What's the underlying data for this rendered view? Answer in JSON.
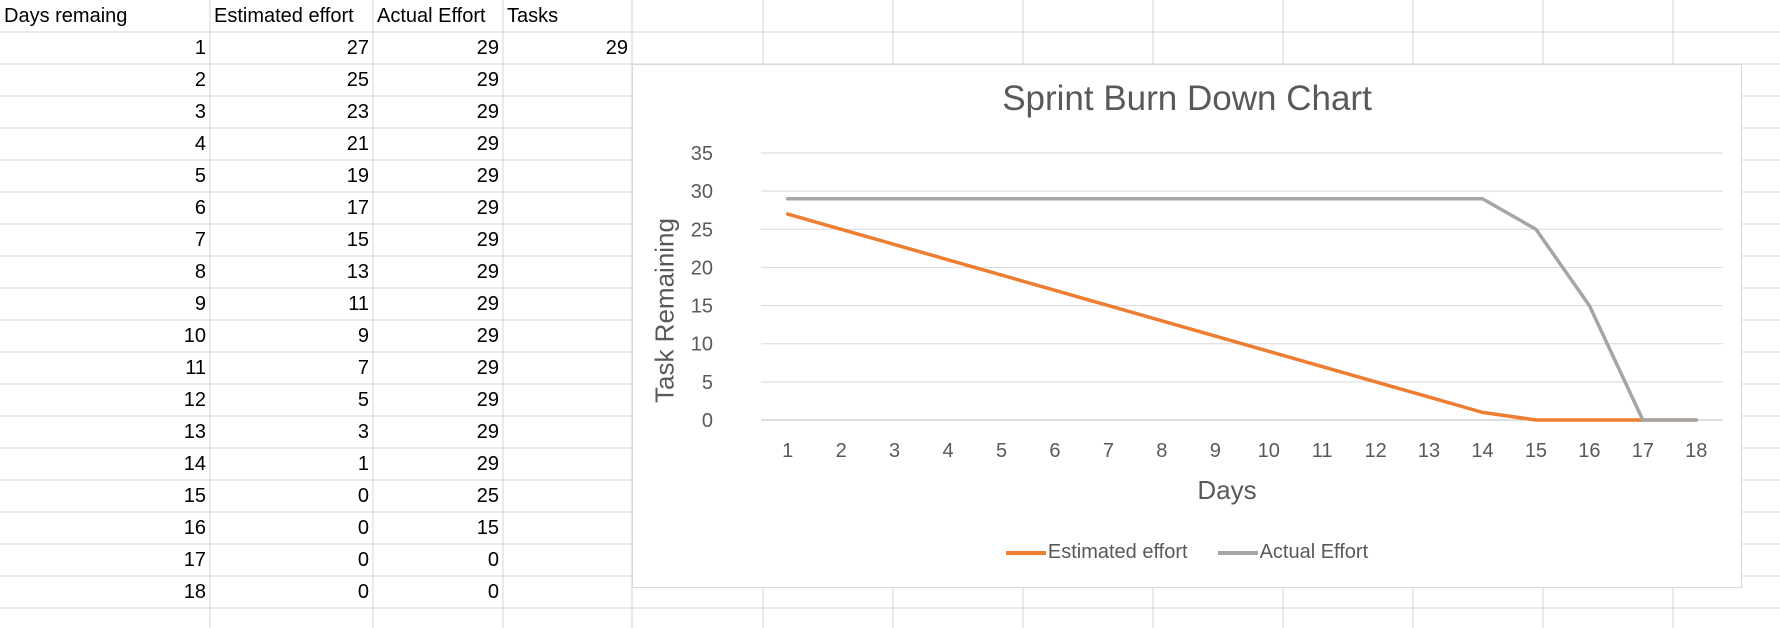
{
  "sheet": {
    "headers": [
      "Days remaing",
      "Estimated effort",
      "Actual Effort",
      "Tasks"
    ],
    "tasks_value": "29",
    "rows": [
      [
        "1",
        "27",
        "29"
      ],
      [
        "2",
        "25",
        "29"
      ],
      [
        "3",
        "23",
        "29"
      ],
      [
        "4",
        "21",
        "29"
      ],
      [
        "5",
        "19",
        "29"
      ],
      [
        "6",
        "17",
        "29"
      ],
      [
        "7",
        "15",
        "29"
      ],
      [
        "8",
        "13",
        "29"
      ],
      [
        "9",
        "11",
        "29"
      ],
      [
        "10",
        "9",
        "29"
      ],
      [
        "11",
        "7",
        "29"
      ],
      [
        "12",
        "5",
        "29"
      ],
      [
        "13",
        "3",
        "29"
      ],
      [
        "14",
        "1",
        "29"
      ],
      [
        "15",
        "0",
        "25"
      ],
      [
        "16",
        "0",
        "15"
      ],
      [
        "17",
        "0",
        "0"
      ],
      [
        "18",
        "0",
        "0"
      ]
    ]
  },
  "chart_data": {
    "type": "line",
    "title": "Sprint Burn Down Chart",
    "xlabel": "Days",
    "ylabel": "Task Remaining",
    "categories": [
      "1",
      "2",
      "3",
      "4",
      "5",
      "6",
      "7",
      "8",
      "9",
      "10",
      "11",
      "12",
      "13",
      "14",
      "15",
      "16",
      "17",
      "18"
    ],
    "ylim": [
      0,
      35
    ],
    "yticks": [
      0,
      5,
      10,
      15,
      20,
      25,
      30,
      35
    ],
    "grid": true,
    "legend": "bottom",
    "series": [
      {
        "name": "Estimated effort",
        "color": "#ed7d31",
        "values": [
          27,
          25,
          23,
          21,
          19,
          17,
          15,
          13,
          11,
          9,
          7,
          5,
          3,
          1,
          0,
          0,
          0,
          0
        ]
      },
      {
        "name": "Actual Effort",
        "color": "#a5a5a5",
        "values": [
          29,
          29,
          29,
          29,
          29,
          29,
          29,
          29,
          29,
          29,
          29,
          29,
          29,
          29,
          25,
          15,
          0,
          0
        ]
      }
    ]
  }
}
